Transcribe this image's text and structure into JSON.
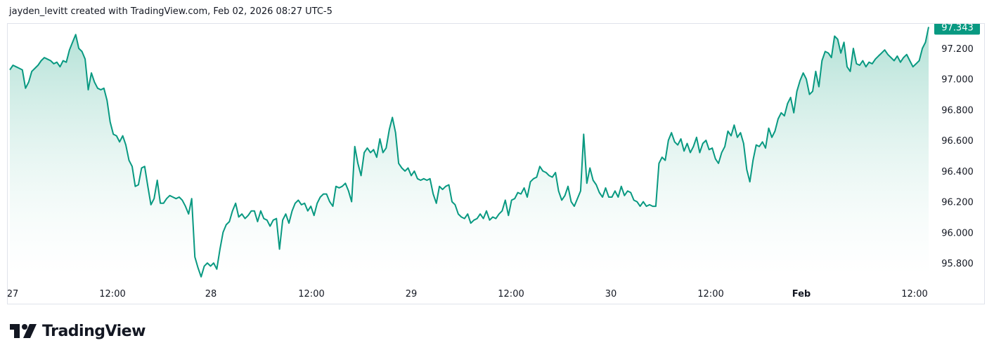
{
  "header": {
    "caption": "jayden_levitt created with TradingView.com, Feb 02, 2026 08:27 UTC-5"
  },
  "brand": {
    "name": "TradingView",
    "logo_icon": "tradingview-logo-icon"
  },
  "colors": {
    "line": "#089981",
    "area_top": "#8fd3c3",
    "area_bottom": "#ffffff",
    "last_badge": "#089981",
    "grid": "#e0e3eb",
    "text": "#131722"
  },
  "chart_data": {
    "type": "area",
    "title": "",
    "xlabel": "",
    "ylabel": "",
    "ylim": [
      95.7,
      97.4
    ],
    "grid": false,
    "y_ticks": [
      "97.200",
      "97.000",
      "96.800",
      "96.600",
      "96.400",
      "96.200",
      "96.000",
      "95.800"
    ],
    "x_ticks": [
      "27",
      "12:00",
      "28",
      "12:00",
      "29",
      "12:00",
      "30",
      "12:00",
      "Feb",
      "12:00"
    ],
    "last_value": "97.343",
    "series": [
      {
        "values": [
          97.06,
          97.09,
          97.08,
          97.07,
          97.06,
          96.94,
          96.98,
          97.05,
          97.07,
          97.09,
          97.12,
          97.14,
          97.13,
          97.12,
          97.1,
          97.11,
          97.08,
          97.12,
          97.11,
          97.19,
          97.24,
          97.29,
          97.2,
          97.18,
          97.13,
          96.93,
          97.04,
          96.98,
          96.94,
          96.93,
          96.94,
          96.86,
          96.72,
          96.64,
          96.63,
          96.59,
          96.63,
          96.57,
          96.47,
          96.43,
          96.3,
          96.31,
          96.42,
          96.43,
          96.3,
          96.18,
          96.22,
          96.34,
          96.19,
          96.19,
          96.22,
          96.24,
          96.23,
          96.22,
          96.23,
          96.21,
          96.17,
          96.12,
          96.22,
          95.84,
          95.77,
          95.71,
          95.78,
          95.8,
          95.78,
          95.8,
          95.76,
          95.89,
          96.0,
          96.05,
          96.07,
          96.14,
          96.19,
          96.1,
          96.12,
          96.09,
          96.11,
          96.14,
          96.14,
          96.07,
          96.14,
          96.09,
          96.08,
          96.04,
          96.08,
          96.09,
          95.89,
          96.08,
          96.12,
          96.06,
          96.14,
          96.19,
          96.21,
          96.18,
          96.19,
          96.14,
          96.17,
          96.11,
          96.19,
          96.23,
          96.25,
          96.25,
          96.2,
          96.17,
          96.3,
          96.29,
          96.3,
          96.32,
          96.27,
          96.2,
          96.56,
          96.45,
          96.37,
          96.52,
          96.55,
          96.52,
          96.54,
          96.49,
          96.61,
          96.52,
          96.55,
          96.67,
          96.75,
          96.65,
          96.45,
          96.42,
          96.4,
          96.42,
          96.37,
          96.4,
          96.35,
          96.34,
          96.35,
          96.34,
          96.35,
          96.25,
          96.19,
          96.3,
          96.28,
          96.3,
          96.31,
          96.2,
          96.18,
          96.12,
          96.1,
          96.09,
          96.12,
          96.06,
          96.08,
          96.09,
          96.12,
          96.09,
          96.14,
          96.08,
          96.1,
          96.09,
          96.12,
          96.14,
          96.21,
          96.11,
          96.21,
          96.22,
          96.26,
          96.25,
          96.29,
          96.23,
          96.33,
          96.35,
          96.36,
          96.43,
          96.4,
          96.39,
          96.37,
          96.36,
          96.39,
          96.27,
          96.21,
          96.24,
          96.3,
          96.2,
          96.17,
          96.22,
          96.27,
          96.64,
          96.32,
          96.42,
          96.34,
          96.31,
          96.26,
          96.23,
          96.29,
          96.23,
          96.23,
          96.27,
          96.23,
          96.3,
          96.24,
          96.27,
          96.26,
          96.21,
          96.2,
          96.17,
          96.2,
          96.17,
          96.18,
          96.17,
          96.17,
          96.45,
          96.49,
          96.47,
          96.6,
          96.65,
          96.59,
          96.57,
          96.61,
          96.53,
          96.58,
          96.52,
          96.56,
          96.62,
          96.52,
          96.58,
          96.6,
          96.54,
          96.55,
          96.48,
          96.45,
          96.52,
          96.56,
          96.66,
          96.63,
          96.7,
          96.62,
          96.65,
          96.58,
          96.41,
          96.33,
          96.47,
          96.57,
          96.56,
          96.59,
          96.55,
          96.68,
          96.62,
          96.66,
          96.74,
          96.78,
          96.76,
          96.84,
          96.88,
          96.78,
          96.92,
          96.99,
          97.04,
          97.0,
          96.9,
          96.92,
          97.05,
          96.95,
          97.12,
          97.18,
          97.17,
          97.14,
          97.28,
          97.26,
          97.17,
          97.24,
          97.08,
          97.05,
          97.2,
          97.1,
          97.09,
          97.12,
          97.08,
          97.11,
          97.1,
          97.13,
          97.15,
          97.17,
          97.19,
          97.16,
          97.14,
          97.12,
          97.15,
          97.11,
          97.14,
          97.16,
          97.12,
          97.08,
          97.1,
          97.12,
          97.2,
          97.24,
          97.34
        ]
      }
    ]
  }
}
